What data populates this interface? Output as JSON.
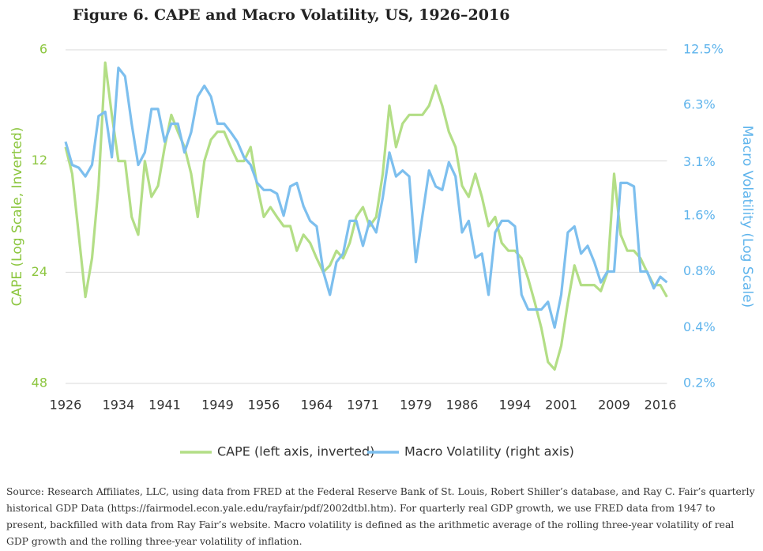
{
  "chart_data": {
    "type": "line",
    "title": "Figure 6. CAPE and Macro Volatility, US, 1926–2016",
    "ylabel": "CAPE (Log Scale, Inverted)",
    "y2label": "Macro Volatility (Log Scale)",
    "source": "Source:  Research Affiliates, LLC, using data from FRED at the Federal Reserve Bank of St. Louis, Robert Shiller’s database, and Ray C. Fair’s quarterly historical GDP Data (https://fairmodel.econ.yale.edu/rayfair/pdf/2002dtbl.htm). For quarterly real GDP growth, we use FRED data from 1947 to present, backfilled with data from Ray Fair’s website. Macro volatility is defined as the arithmetic average of the rolling three-year volatility of real GDP growth and the rolling three-year volatility of inflation.",
    "x": [
      1926,
      1927,
      1928,
      1929,
      1930,
      1931,
      1932,
      1933,
      1934,
      1935,
      1936,
      1937,
      1938,
      1939,
      1940,
      1941,
      1942,
      1943,
      1944,
      1945,
      1946,
      1947,
      1948,
      1949,
      1950,
      1951,
      1952,
      1953,
      1954,
      1955,
      1956,
      1957,
      1958,
      1959,
      1960,
      1961,
      1962,
      1963,
      1964,
      1965,
      1966,
      1967,
      1968,
      1969,
      1970,
      1971,
      1972,
      1973,
      1974,
      1975,
      1976,
      1977,
      1978,
      1979,
      1980,
      1981,
      1982,
      1983,
      1984,
      1985,
      1986,
      1987,
      1988,
      1989,
      1990,
      1991,
      1992,
      1993,
      1994,
      1995,
      1996,
      1997,
      1998,
      1999,
      2000,
      2001,
      2002,
      2003,
      2004,
      2005,
      2006,
      2007,
      2008,
      2009,
      2010,
      2011,
      2012,
      2013,
      2014,
      2015,
      2016,
      2017
    ],
    "xlim": [
      1926,
      2017
    ],
    "xticks": [
      1926,
      1934,
      1941,
      1949,
      1956,
      1964,
      1971,
      1979,
      1986,
      1994,
      2001,
      2009,
      2016
    ],
    "ylim": [
      6,
      48
    ],
    "yticks": [
      6,
      12,
      24,
      48
    ],
    "y_log": true,
    "y_inverted": true,
    "y2lim": [
      0.2,
      12.5
    ],
    "y2_log": true,
    "y2ticks": [
      {
        "value": 12.5,
        "label": "12.5%"
      },
      {
        "value": 6.3,
        "label": "6.3%"
      },
      {
        "value": 3.1,
        "label": "3.1%"
      },
      {
        "value": 1.6,
        "label": "1.6%"
      },
      {
        "value": 0.8,
        "label": "0.8%"
      },
      {
        "value": 0.4,
        "label": "0.4%"
      },
      {
        "value": 0.2,
        "label": "0.2%"
      }
    ],
    "grid": true,
    "legend": "bottom",
    "series": [
      {
        "name": "CAPE (left axis, inverted)",
        "color": "#b3de86",
        "axis": "y",
        "values": [
          11,
          13,
          19,
          28,
          22,
          14,
          6.5,
          9,
          12,
          12,
          17,
          19,
          12,
          15,
          14,
          11,
          9,
          10,
          11,
          13,
          17,
          12,
          10.5,
          10,
          10,
          11,
          12,
          12,
          11,
          14,
          17,
          16,
          17,
          18,
          18,
          21,
          19,
          20,
          22,
          24,
          23,
          21,
          22,
          20,
          17,
          16,
          18,
          17,
          13,
          8.5,
          11,
          9.5,
          9,
          9,
          9,
          8.5,
          7.5,
          8.5,
          10,
          11,
          14,
          15,
          13,
          15,
          18,
          17,
          20,
          21,
          21,
          22,
          25,
          29,
          34,
          42,
          44,
          38,
          29,
          23,
          26,
          26,
          26,
          27,
          24,
          13,
          19,
          21,
          21,
          22,
          24,
          26,
          26,
          28
        ]
      },
      {
        "name": "Macro Volatility (right axis)",
        "color": "#7dbfee",
        "axis": "y2",
        "values": [
          4,
          3,
          2.9,
          2.6,
          3,
          5.5,
          5.8,
          3.3,
          10,
          9,
          5,
          3,
          3.5,
          6,
          6,
          4,
          5,
          5,
          3.5,
          4.5,
          7,
          8,
          7,
          5,
          5,
          4.5,
          4,
          3.3,
          3,
          2.4,
          2.2,
          2.2,
          2.1,
          1.6,
          2.3,
          2.4,
          1.8,
          1.5,
          1.4,
          0.8,
          0.6,
          0.9,
          1,
          1.5,
          1.5,
          1.1,
          1.5,
          1.3,
          2,
          3.5,
          2.6,
          2.8,
          2.6,
          0.9,
          1.6,
          2.8,
          2.3,
          2.2,
          3.1,
          2.6,
          1.3,
          1.5,
          0.95,
          1,
          0.6,
          1.3,
          1.5,
          1.5,
          1.4,
          0.6,
          0.5,
          0.5,
          0.5,
          0.55,
          0.4,
          0.6,
          1.3,
          1.4,
          1,
          1.1,
          0.9,
          0.7,
          0.8,
          0.8,
          2.4,
          2.4,
          2.3,
          0.8,
          0.8,
          0.65,
          0.75,
          0.7
        ]
      }
    ]
  }
}
